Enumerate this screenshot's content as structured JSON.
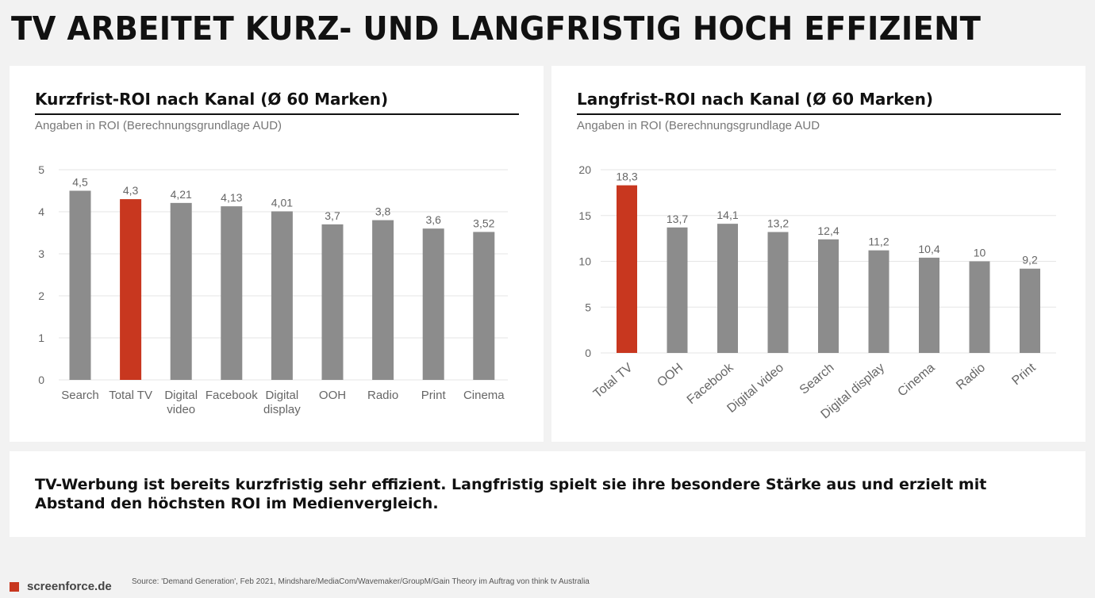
{
  "headline": "TV ARBEITET KURZ- UND LANGFRISTIG HOCH EFFIZIENT",
  "colors": {
    "highlight": "#c8371f",
    "bar": "#8c8c8c",
    "grid": "#e6e6e6",
    "axis_text": "#666666"
  },
  "summary": "TV-Werbung ist bereits kurzfristig sehr effizient. Langfristig spielt sie ihre besondere Stärke aus und erzielt mit Abstand den höchsten ROI im Medienvergleich.",
  "footer": {
    "brand": "screenforce.de",
    "source": "Source: 'Demand Generation', Feb 2021, Mindshare/MediaCom/Wavemaker/GroupM/Gain Theory im Auftrag von think tv Australia"
  },
  "chart_data": [
    {
      "type": "bar",
      "title": "Kurzfrist-ROI nach Kanal (Ø 60 Marken)",
      "subtitle": "Angaben in ROI (Berechnungsgrundlage AUD)",
      "categories": [
        "Search",
        "Total TV",
        "Digital video",
        "Facebook",
        "Digital display",
        "OOH",
        "Radio",
        "Print",
        "Cinema"
      ],
      "category_lines": [
        [
          "Search"
        ],
        [
          "Total TV"
        ],
        [
          "Digital",
          "video"
        ],
        [
          "Facebook"
        ],
        [
          "Digital",
          "display"
        ],
        [
          "OOH"
        ],
        [
          "Radio"
        ],
        [
          "Print"
        ],
        [
          "Cinema"
        ]
      ],
      "values": [
        4.5,
        4.3,
        4.21,
        4.13,
        4.01,
        3.7,
        3.8,
        3.6,
        3.52
      ],
      "value_labels": [
        "4,5",
        "4,3",
        "4,21",
        "4,13",
        "4,01",
        "3,7",
        "3,8",
        "3,6",
        "3,52"
      ],
      "highlight": "Total TV",
      "ylim": [
        0,
        5
      ],
      "yticks": [
        0,
        1,
        2,
        3,
        4,
        5
      ],
      "grid": true,
      "rotated_labels": false
    },
    {
      "type": "bar",
      "title": "Langfrist-ROI nach Kanal (Ø 60 Marken)",
      "subtitle": "Angaben in ROI (Berechnungsgrundlage AUD",
      "categories": [
        "Total TV",
        "OOH",
        "Facebook",
        "Digital video",
        "Search",
        "Digital display",
        "Cinema",
        "Radio",
        "Print"
      ],
      "category_lines": [
        [
          "Total TV"
        ],
        [
          "OOH"
        ],
        [
          "Facebook"
        ],
        [
          "Digital video"
        ],
        [
          "Search"
        ],
        [
          "Digital display"
        ],
        [
          "Cinema"
        ],
        [
          "Radio"
        ],
        [
          "Print"
        ]
      ],
      "values": [
        18.3,
        13.7,
        14.1,
        13.2,
        12.4,
        11.2,
        10.4,
        10,
        9.2
      ],
      "value_labels": [
        "18,3",
        "13,7",
        "14,1",
        "13,2",
        "12,4",
        "11,2",
        "10,4",
        "10",
        "9,2"
      ],
      "highlight": "Total TV",
      "ylim": [
        0,
        20
      ],
      "yticks": [
        0,
        5,
        10,
        15,
        20
      ],
      "grid": true,
      "rotated_labels": true
    }
  ]
}
